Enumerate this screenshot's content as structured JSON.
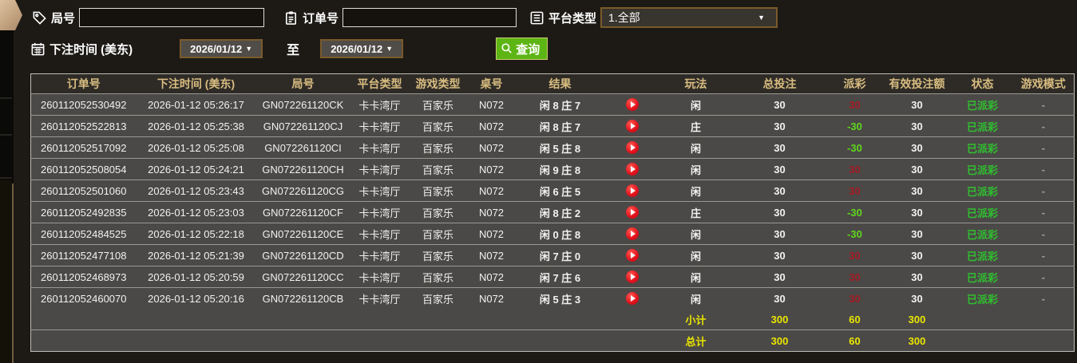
{
  "filters": {
    "round": {
      "label": "局号",
      "value": "",
      "icon": "tag-icon"
    },
    "order": {
      "label": "订单号",
      "value": "",
      "icon": "clipboard-icon"
    },
    "platform": {
      "label": "平台类型",
      "value": "1.全部",
      "icon": "list-icon"
    },
    "bet_time": {
      "label": "下注时间 (美东)",
      "icon": "calendar-icon"
    },
    "date_from": "2026/01/12",
    "date_to": "2026/01/12",
    "to_label": "至",
    "query_button": {
      "label": "查询",
      "icon": "search-icon"
    },
    "dropdown_arrow": "▼"
  },
  "table": {
    "columns": [
      "订单号",
      "下注时间 (美东)",
      "局号",
      "平台类型",
      "游戏类型",
      "桌号",
      "结果",
      "",
      "玩法",
      "总投注",
      "派彩",
      "有效投注额",
      "状态",
      "游戏模式"
    ],
    "rows": [
      {
        "order_no": "260112052530492",
        "bet_time": "2026-01-12 05:26:17",
        "round_no": "GN072261120CK",
        "platform": "卡卡湾厅",
        "game_type": "百家乐",
        "table_no": "N072",
        "result": "闲 8 庄 7",
        "replay": "play-icon",
        "play": "闲",
        "total_bet": "30",
        "payout": "30",
        "payout_class": "win",
        "valid_bet": "30",
        "status": "已派彩",
        "mode": "-"
      },
      {
        "order_no": "260112052522813",
        "bet_time": "2026-01-12 05:25:38",
        "round_no": "GN072261120CJ",
        "platform": "卡卡湾厅",
        "game_type": "百家乐",
        "table_no": "N072",
        "result": "闲 8 庄 7",
        "replay": "play-icon",
        "play": "庄",
        "total_bet": "30",
        "payout": "-30",
        "payout_class": "loss",
        "valid_bet": "30",
        "status": "已派彩",
        "mode": "-"
      },
      {
        "order_no": "260112052517092",
        "bet_time": "2026-01-12 05:25:08",
        "round_no": "GN072261120CI",
        "platform": "卡卡湾厅",
        "game_type": "百家乐",
        "table_no": "N072",
        "result": "闲 5 庄 8",
        "replay": "play-icon",
        "play": "闲",
        "total_bet": "30",
        "payout": "-30",
        "payout_class": "loss",
        "valid_bet": "30",
        "status": "已派彩",
        "mode": "-"
      },
      {
        "order_no": "260112052508054",
        "bet_time": "2026-01-12 05:24:21",
        "round_no": "GN072261120CH",
        "platform": "卡卡湾厅",
        "game_type": "百家乐",
        "table_no": "N072",
        "result": "闲 9 庄 8",
        "replay": "play-icon",
        "play": "闲",
        "total_bet": "30",
        "payout": "30",
        "payout_class": "win",
        "valid_bet": "30",
        "status": "已派彩",
        "mode": "-"
      },
      {
        "order_no": "260112052501060",
        "bet_time": "2026-01-12 05:23:43",
        "round_no": "GN072261120CG",
        "platform": "卡卡湾厅",
        "game_type": "百家乐",
        "table_no": "N072",
        "result": "闲 6 庄 5",
        "replay": "play-icon",
        "play": "闲",
        "total_bet": "30",
        "payout": "30",
        "payout_class": "win",
        "valid_bet": "30",
        "status": "已派彩",
        "mode": "-"
      },
      {
        "order_no": "260112052492835",
        "bet_time": "2026-01-12 05:23:03",
        "round_no": "GN072261120CF",
        "platform": "卡卡湾厅",
        "game_type": "百家乐",
        "table_no": "N072",
        "result": "闲 8 庄 2",
        "replay": "play-icon",
        "play": "庄",
        "total_bet": "30",
        "payout": "-30",
        "payout_class": "loss",
        "valid_bet": "30",
        "status": "已派彩",
        "mode": "-"
      },
      {
        "order_no": "260112052484525",
        "bet_time": "2026-01-12 05:22:18",
        "round_no": "GN072261120CE",
        "platform": "卡卡湾厅",
        "game_type": "百家乐",
        "table_no": "N072",
        "result": "闲 0 庄 8",
        "replay": "play-icon",
        "play": "闲",
        "total_bet": "30",
        "payout": "-30",
        "payout_class": "loss",
        "valid_bet": "30",
        "status": "已派彩",
        "mode": "-"
      },
      {
        "order_no": "260112052477108",
        "bet_time": "2026-01-12 05:21:39",
        "round_no": "GN072261120CD",
        "platform": "卡卡湾厅",
        "game_type": "百家乐",
        "table_no": "N072",
        "result": "闲 7 庄 0",
        "replay": "play-icon",
        "play": "闲",
        "total_bet": "30",
        "payout": "30",
        "payout_class": "win",
        "valid_bet": "30",
        "status": "已派彩",
        "mode": "-"
      },
      {
        "order_no": "260112052468973",
        "bet_time": "2026-01-12 05:20:59",
        "round_no": "GN072261120CC",
        "platform": "卡卡湾厅",
        "game_type": "百家乐",
        "table_no": "N072",
        "result": "闲 7 庄 6",
        "replay": "play-icon",
        "play": "闲",
        "total_bet": "30",
        "payout": "30",
        "payout_class": "win",
        "valid_bet": "30",
        "status": "已派彩",
        "mode": "-"
      },
      {
        "order_no": "260112052460070",
        "bet_time": "2026-01-12 05:20:16",
        "round_no": "GN072261120CB",
        "platform": "卡卡湾厅",
        "game_type": "百家乐",
        "table_no": "N072",
        "result": "闲 5 庄 3",
        "replay": "play-icon",
        "play": "闲",
        "total_bet": "30",
        "payout": "30",
        "payout_class": "win",
        "valid_bet": "30",
        "status": "已派彩",
        "mode": "-"
      }
    ],
    "summary_rows": [
      {
        "play": "小计",
        "total_bet": "300",
        "payout": "60",
        "valid_bet": "300"
      },
      {
        "play": "总计",
        "total_bet": "300",
        "payout": "60",
        "valid_bet": "300"
      }
    ]
  },
  "colors": {
    "header_gold": "#d9bd80",
    "status_green": "#2fc02f",
    "payout_win_red": "#a11b24",
    "payout_loss_green": "#5ed71d",
    "summary_yellow": "#e9e500",
    "query_button_green": "#5db514",
    "field_border_brown": "#7a5a2a",
    "row_gray": "#4b4947"
  }
}
